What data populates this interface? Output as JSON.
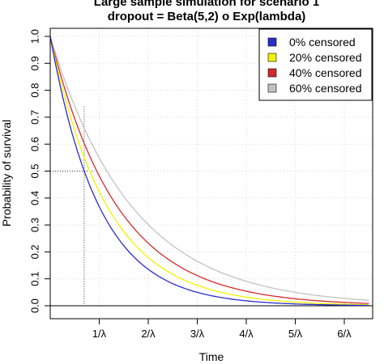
{
  "chart_data": {
    "type": "line",
    "title_line1": "Large sample simulation for scenario 1",
    "title_line2": "dropout = Beta(5,2) o Exp(lambda)",
    "xlabel": "Time",
    "ylabel": "Probability of survival",
    "xlim": [
      0,
      6.5
    ],
    "ylim": [
      0,
      1
    ],
    "x_ticks": [
      1,
      2,
      3,
      4,
      5,
      6
    ],
    "x_tick_labels": [
      "1/λ",
      "2/λ",
      "3/λ",
      "4/λ",
      "5/λ",
      "6/λ"
    ],
    "y_ticks": [
      0.0,
      0.1,
      0.2,
      0.3,
      0.4,
      0.5,
      0.6,
      0.7,
      0.8,
      0.9,
      1.0
    ],
    "y_tick_labels": [
      "0.0",
      "0.1",
      "0.2",
      "0.3",
      "0.4",
      "0.5",
      "0.6",
      "0.7",
      "0.8",
      "0.9",
      "1.0"
    ],
    "grid": true,
    "legend_position": "top-right",
    "series": [
      {
        "name": "0% censored",
        "color": "#2a2ec9",
        "rate": 1.0,
        "x": [
          0,
          0.5,
          1,
          1.5,
          2,
          2.5,
          3,
          3.5,
          4,
          4.5,
          5,
          5.5,
          6,
          6.5
        ],
        "values": [
          1.0,
          0.61,
          0.37,
          0.22,
          0.14,
          0.08,
          0.05,
          0.03,
          0.02,
          0.01,
          0.007,
          0.004,
          0.002,
          0.0015
        ]
      },
      {
        "name": "20% censored",
        "color": "#f2f200",
        "rate": 0.86,
        "x": [
          0,
          0.5,
          1,
          1.5,
          2,
          2.5,
          3,
          3.5,
          4,
          4.5,
          5,
          5.5,
          6,
          6.5
        ],
        "values": [
          1.0,
          0.65,
          0.42,
          0.28,
          0.18,
          0.12,
          0.08,
          0.05,
          0.03,
          0.02,
          0.014,
          0.009,
          0.006,
          0.004
        ]
      },
      {
        "name": "40% censored",
        "color": "#d42a2a",
        "rate": 0.73,
        "x": [
          0,
          0.5,
          1,
          1.5,
          2,
          2.5,
          3,
          3.5,
          4,
          4.5,
          5,
          5.5,
          6,
          6.5
        ],
        "values": [
          1.0,
          0.69,
          0.48,
          0.33,
          0.23,
          0.16,
          0.11,
          0.08,
          0.05,
          0.04,
          0.026,
          0.018,
          0.013,
          0.009
        ]
      },
      {
        "name": "60% censored",
        "color": "#c2c2c2",
        "rate": 0.6,
        "x": [
          0,
          0.5,
          1,
          1.5,
          2,
          2.5,
          3,
          3.5,
          4,
          4.5,
          5,
          5.5,
          6,
          6.5
        ],
        "values": [
          1.0,
          0.74,
          0.55,
          0.41,
          0.3,
          0.22,
          0.17,
          0.12,
          0.09,
          0.07,
          0.05,
          0.04,
          0.03,
          0.02
        ]
      }
    ],
    "reference": {
      "median_x": 0.693,
      "median_y": 0.5,
      "vline_top": 0.74
    }
  }
}
